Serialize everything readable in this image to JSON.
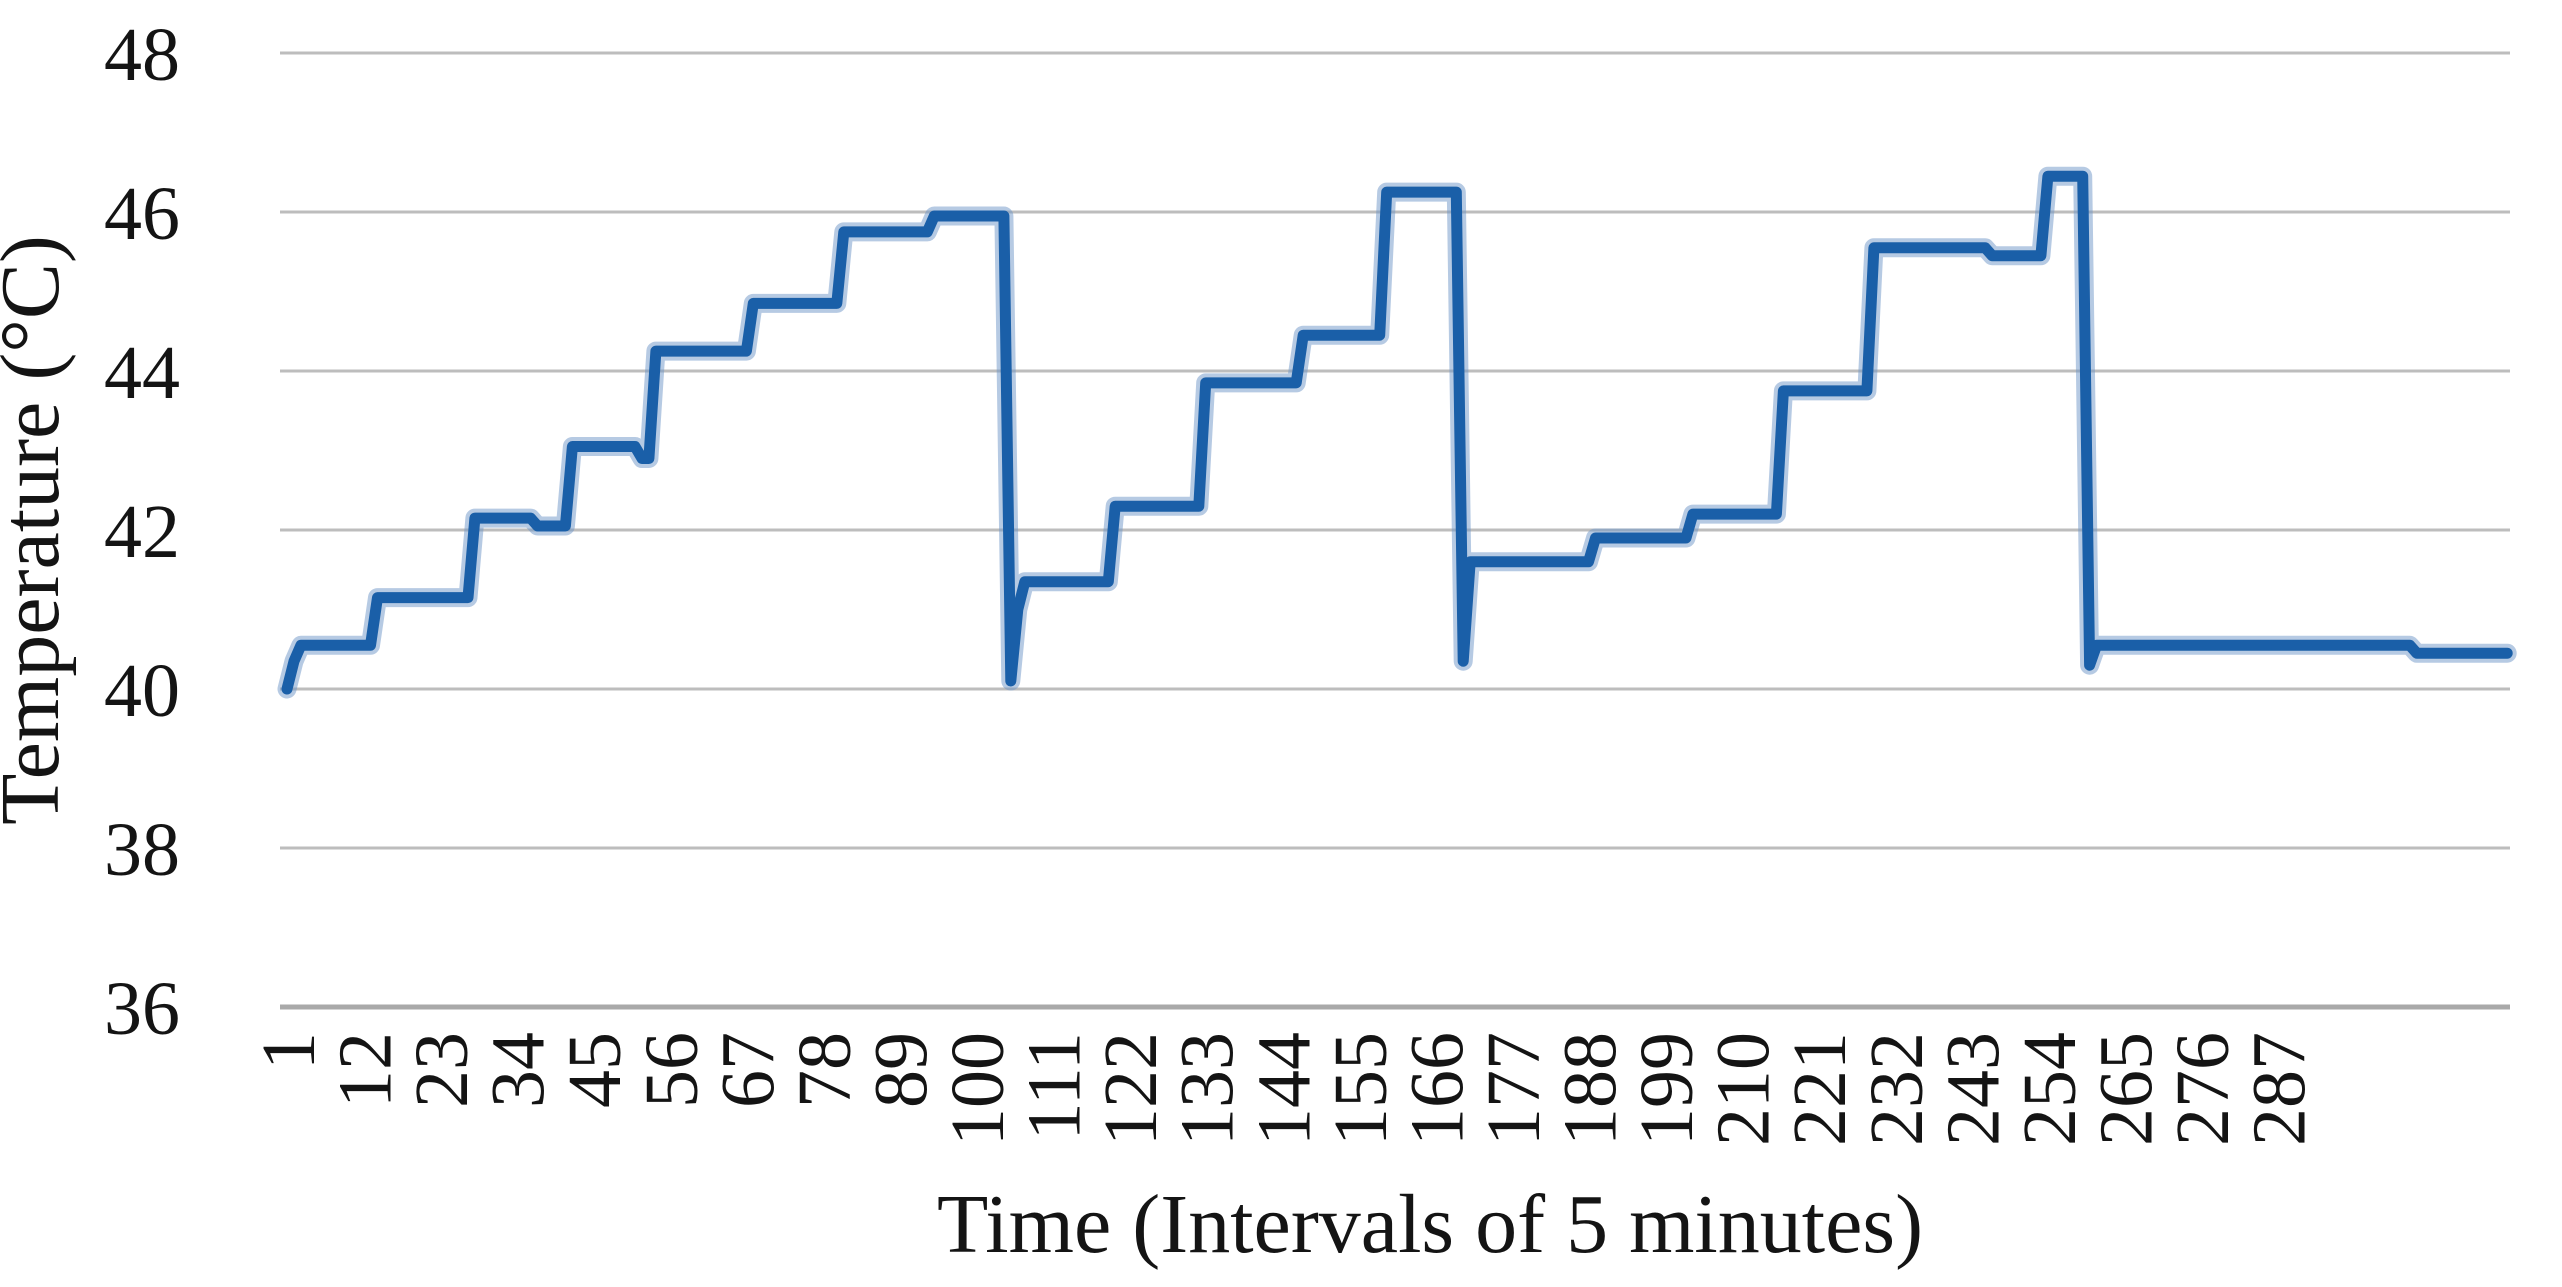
{
  "chart_data": {
    "type": "line",
    "title": "",
    "xlabel": "Time (Intervals of 5 minutes)",
    "ylabel": "Temperature (°C)",
    "x_ticks": [
      1,
      12,
      23,
      34,
      45,
      56,
      67,
      78,
      89,
      100,
      111,
      122,
      133,
      144,
      155,
      166,
      177,
      188,
      199,
      210,
      221,
      232,
      243,
      254,
      265,
      276,
      287
    ],
    "y_ticks": [
      48,
      46,
      44,
      42,
      40,
      38,
      36
    ],
    "ylim": [
      36,
      48
    ],
    "xlim": [
      1,
      320
    ],
    "grid": "horizontal",
    "legend": "none",
    "series": [
      {
        "name": "Temperature",
        "color": "#1a5fa8",
        "halo_color": "#6e96c8",
        "segments": [
          {
            "start": 1,
            "end": 1,
            "value": 40.0
          },
          {
            "start": 2,
            "end": 2,
            "value": 40.35
          },
          {
            "start": 3,
            "end": 13,
            "value": 40.55
          },
          {
            "start": 14,
            "end": 27,
            "value": 41.15
          },
          {
            "start": 28,
            "end": 36,
            "value": 42.15
          },
          {
            "start": 37,
            "end": 41,
            "value": 42.05
          },
          {
            "start": 42,
            "end": 51,
            "value": 43.05
          },
          {
            "start": 52,
            "end": 53,
            "value": 42.9
          },
          {
            "start": 54,
            "end": 67,
            "value": 44.25
          },
          {
            "start": 68,
            "end": 80,
            "value": 44.85
          },
          {
            "start": 81,
            "end": 93,
            "value": 45.75
          },
          {
            "start": 94,
            "end": 104,
            "value": 45.95
          },
          {
            "start": 105,
            "end": 105,
            "value": 40.1
          },
          {
            "start": 106,
            "end": 106,
            "value": 41.0
          },
          {
            "start": 107,
            "end": 119,
            "value": 41.35
          },
          {
            "start": 120,
            "end": 132,
            "value": 42.3
          },
          {
            "start": 133,
            "end": 146,
            "value": 43.85
          },
          {
            "start": 147,
            "end": 158,
            "value": 44.45
          },
          {
            "start": 159,
            "end": 169,
            "value": 46.25
          },
          {
            "start": 170,
            "end": 170,
            "value": 40.35
          },
          {
            "start": 171,
            "end": 188,
            "value": 41.6
          },
          {
            "start": 189,
            "end": 202,
            "value": 41.9
          },
          {
            "start": 203,
            "end": 215,
            "value": 42.2
          },
          {
            "start": 216,
            "end": 228,
            "value": 43.75
          },
          {
            "start": 229,
            "end": 245,
            "value": 45.55
          },
          {
            "start": 246,
            "end": 253,
            "value": 45.45
          },
          {
            "start": 254,
            "end": 259,
            "value": 46.45
          },
          {
            "start": 260,
            "end": 260,
            "value": 40.3
          },
          {
            "start": 261,
            "end": 306,
            "value": 40.55
          },
          {
            "start": 307,
            "end": 320,
            "value": 40.45
          }
        ]
      }
    ],
    "colors": {
      "line": "#1a5fa8",
      "line_halo": "#6e96c8",
      "gridline": "#bdbdbd",
      "axis_line": "#a9a9a9",
      "text": "#141414",
      "background": "#ffffff"
    }
  }
}
